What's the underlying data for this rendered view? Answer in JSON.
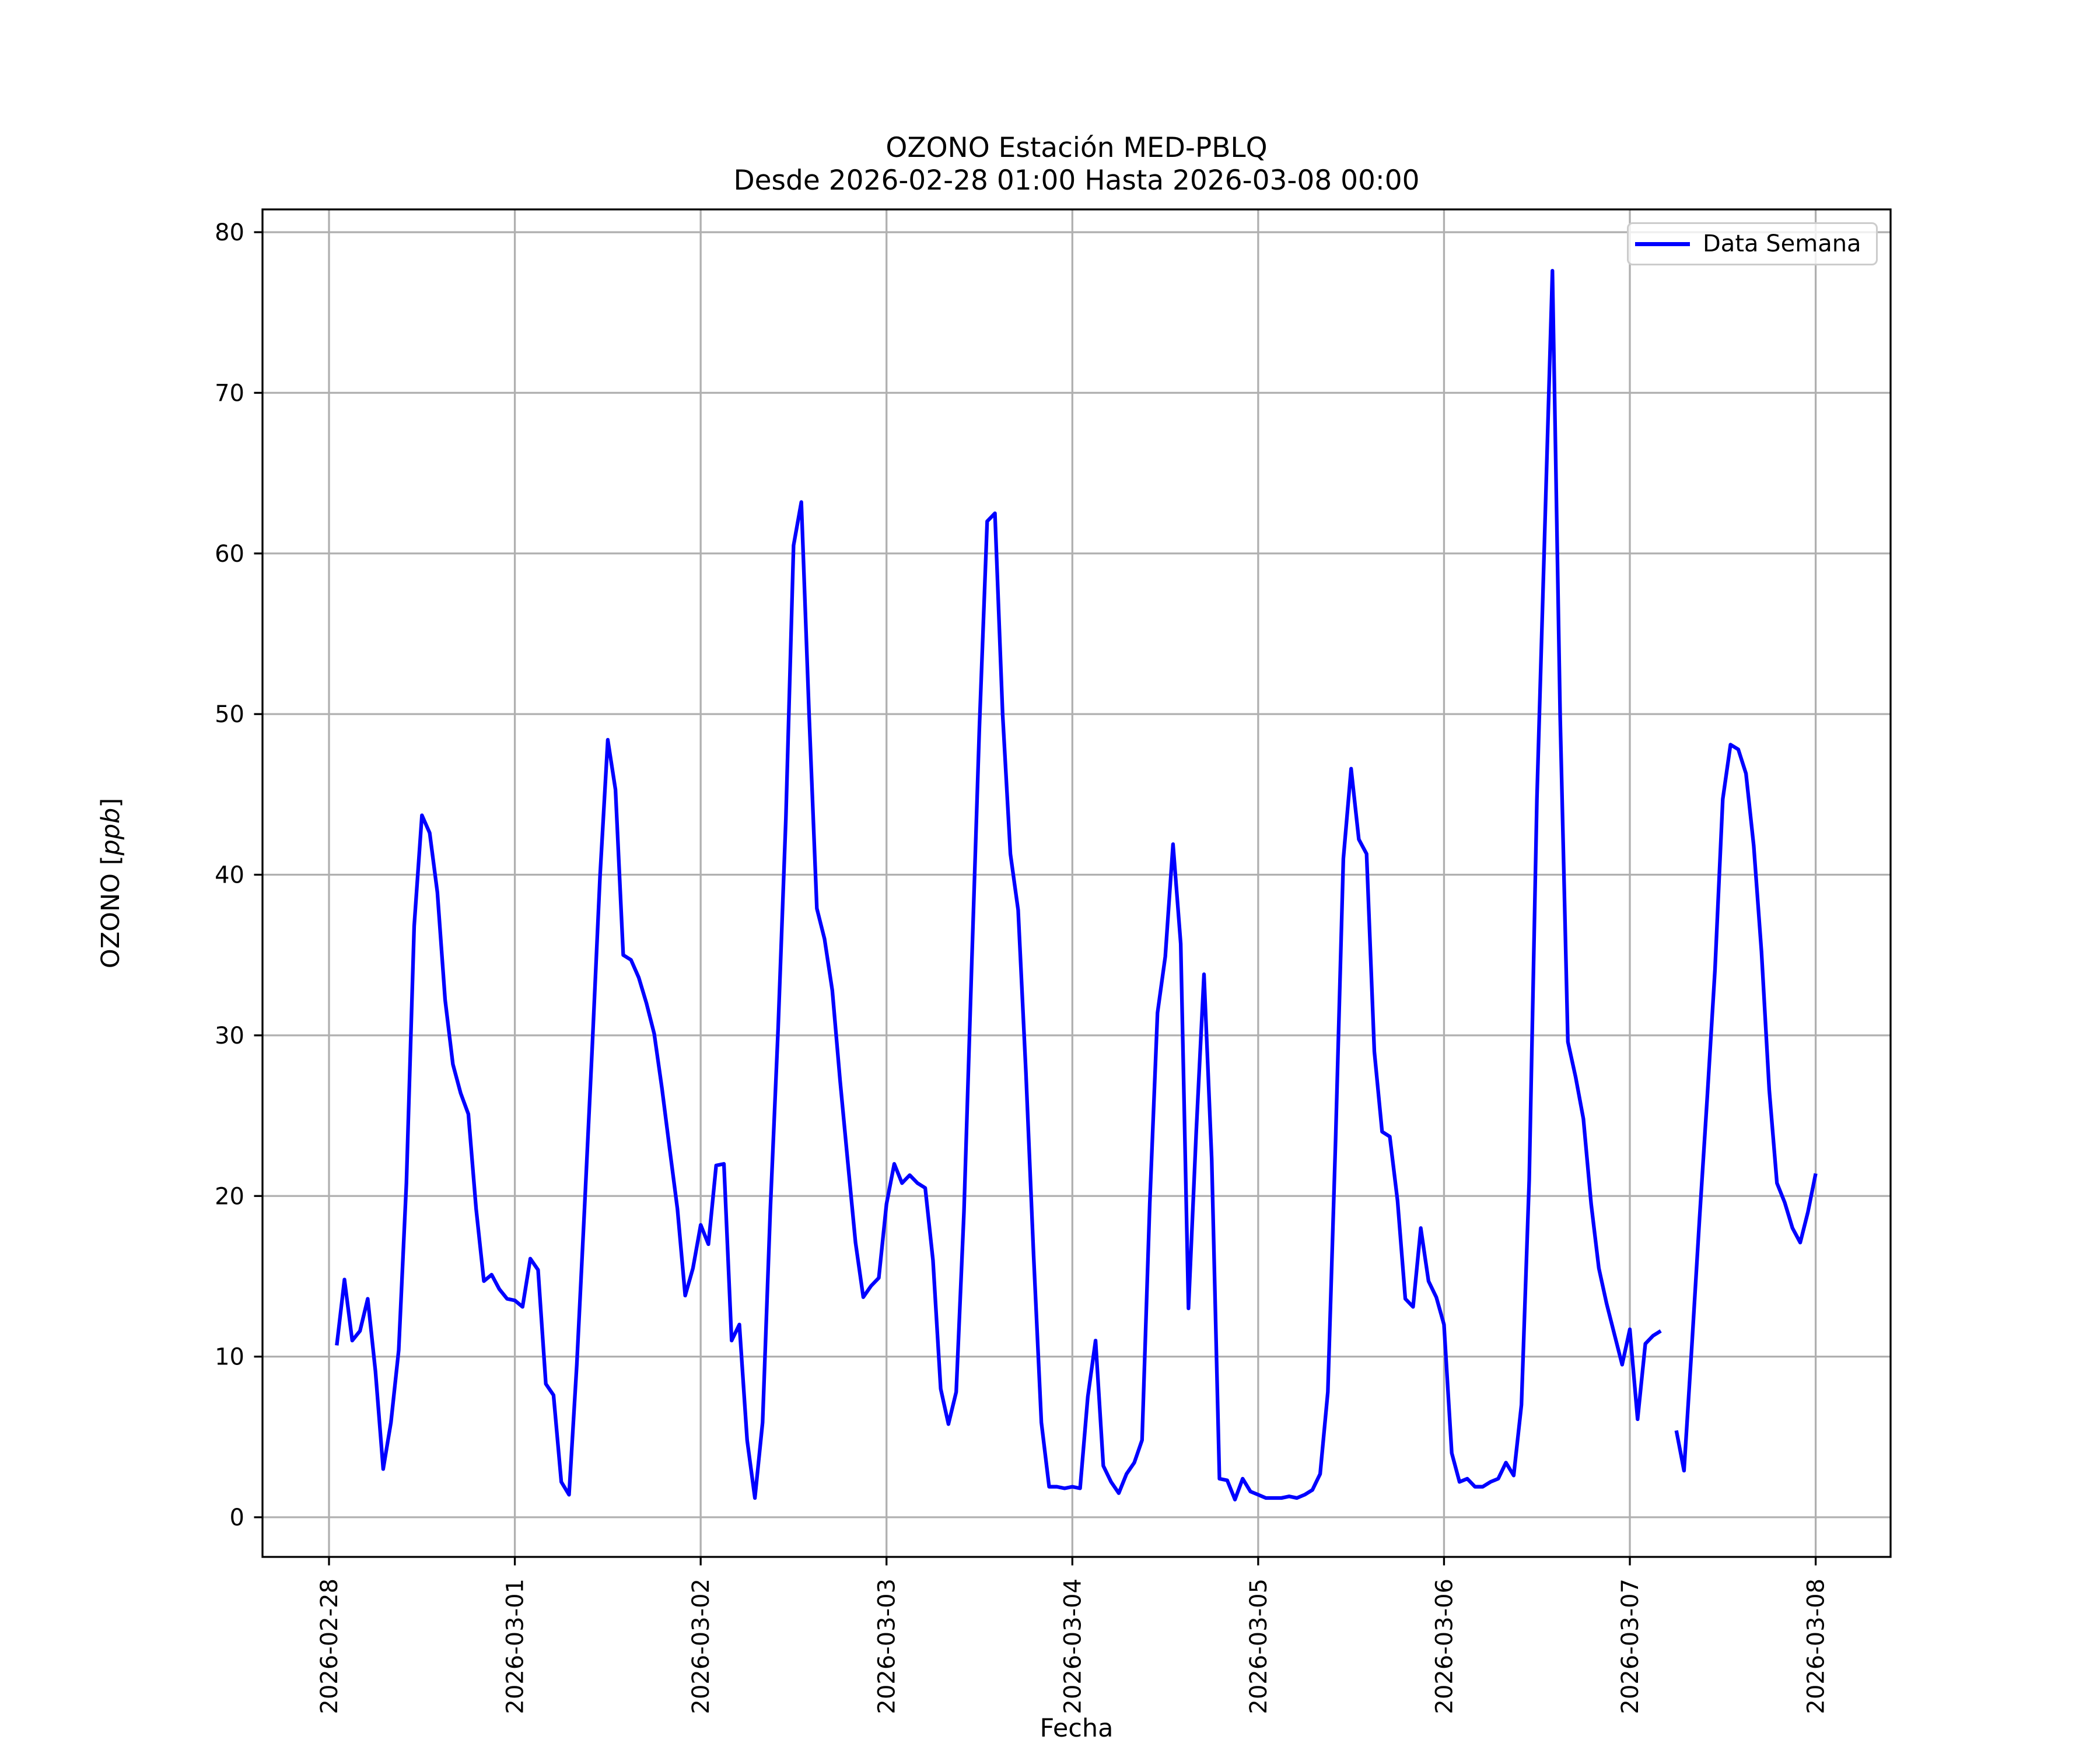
{
  "figure": {
    "title_line1": "OZONO Estación MED-PBLQ",
    "title_line2": "Desde 2026-02-28 01:00 Hasta 2026-03-08 00:00",
    "xlabel": "Fecha",
    "ylabel_prefix": "OZONO [",
    "ylabel_italic": "ppb",
    "ylabel_suffix": "]",
    "legend": {
      "label": "Data Semana",
      "line_color": "#0000ff"
    }
  },
  "chart_data": {
    "type": "line",
    "title": "OZONO Estación MED-PBLQ",
    "subtitle": "Desde 2026-02-28 01:00 Hasta 2026-03-08 00:00",
    "xlabel": "Fecha",
    "ylabel": "OZONO [ppb]",
    "grid": true,
    "legend_position": "upper right",
    "line_color": "#0000ff",
    "grid_color": "#b0b0b0",
    "x_start": "2026-02-28 01:00",
    "x_interval_hours": 1,
    "x_ticks": [
      "2026-02-28",
      "2026-03-01",
      "2026-03-02",
      "2026-03-03",
      "2026-03-04",
      "2026-03-05",
      "2026-03-06",
      "2026-03-07",
      "2026-03-08"
    ],
    "y_ticks": [
      0,
      10,
      20,
      30,
      40,
      50,
      60,
      70,
      80
    ],
    "ylim": [
      -2.5,
      81.5
    ],
    "xlim_days_from_first_tick": [
      -0.358,
      8.402
    ],
    "series": [
      {
        "name": "Data Semana",
        "color": "#0000ff",
        "values": [
          10.7,
          14.8,
          11.0,
          11.6,
          13.6,
          9.1,
          3.0,
          5.9,
          10.4,
          20.8,
          36.8,
          43.7,
          42.6,
          38.9,
          32.2,
          28.2,
          26.4,
          25.1,
          19.2,
          14.7,
          15.1,
          14.2,
          13.6,
          13.5,
          13.1,
          16.1,
          15.4,
          8.3,
          7.6,
          2.2,
          1.4,
          9.5,
          19.2,
          29.3,
          39.9,
          48.4,
          45.3,
          35.0,
          34.7,
          33.6,
          32.0,
          30.1,
          26.7,
          22.9,
          19.2,
          13.8,
          15.5,
          18.2,
          17.0,
          21.9,
          22.0,
          11.0,
          12.0,
          4.8,
          1.2,
          5.9,
          19.2,
          30.4,
          43.5,
          60.5,
          63.2,
          50.0,
          37.9,
          36.0,
          32.8,
          27.2,
          22.1,
          17.1,
          13.7,
          14.4,
          14.9,
          19.5,
          22.0,
          20.8,
          21.3,
          20.8,
          20.5,
          16.0,
          8.0,
          5.8,
          7.8,
          19.0,
          34.3,
          49.2,
          62.0,
          62.5,
          50.0,
          41.3,
          37.8,
          27.7,
          16.3,
          5.9,
          1.9,
          1.9,
          1.8,
          1.9,
          1.8,
          7.5,
          11.0,
          3.2,
          2.2,
          1.5,
          2.7,
          3.4,
          4.8,
          19.5,
          31.4,
          34.9,
          41.9,
          35.7,
          13.0,
          24.0,
          33.8,
          22.3,
          2.4,
          2.3,
          1.1,
          2.4,
          1.6,
          1.4,
          1.2,
          1.2,
          1.2,
          1.3,
          1.2,
          1.4,
          1.7,
          2.7,
          7.8,
          23.5,
          41.0,
          46.6,
          42.2,
          41.3,
          29.0,
          24.0,
          23.7,
          19.7,
          13.6,
          13.1,
          18.0,
          14.7,
          13.7,
          12.0,
          4.0,
          2.2,
          2.4,
          1.9,
          1.9,
          2.2,
          2.4,
          3.4,
          2.6,
          7.0,
          21.0,
          44.7,
          61.2,
          77.6,
          49.8,
          29.6,
          27.4,
          24.8,
          19.5,
          15.5,
          13.3,
          11.4,
          9.5,
          11.7,
          6.1,
          10.8,
          11.3,
          11.6,
          null,
          5.4,
          2.9,
          10.6,
          18.6,
          26.2,
          34.1,
          44.7,
          48.1,
          47.8,
          46.3,
          41.8,
          35.2,
          26.6,
          20.8,
          19.6,
          18.0,
          17.1,
          19.0,
          21.4
        ]
      }
    ]
  }
}
